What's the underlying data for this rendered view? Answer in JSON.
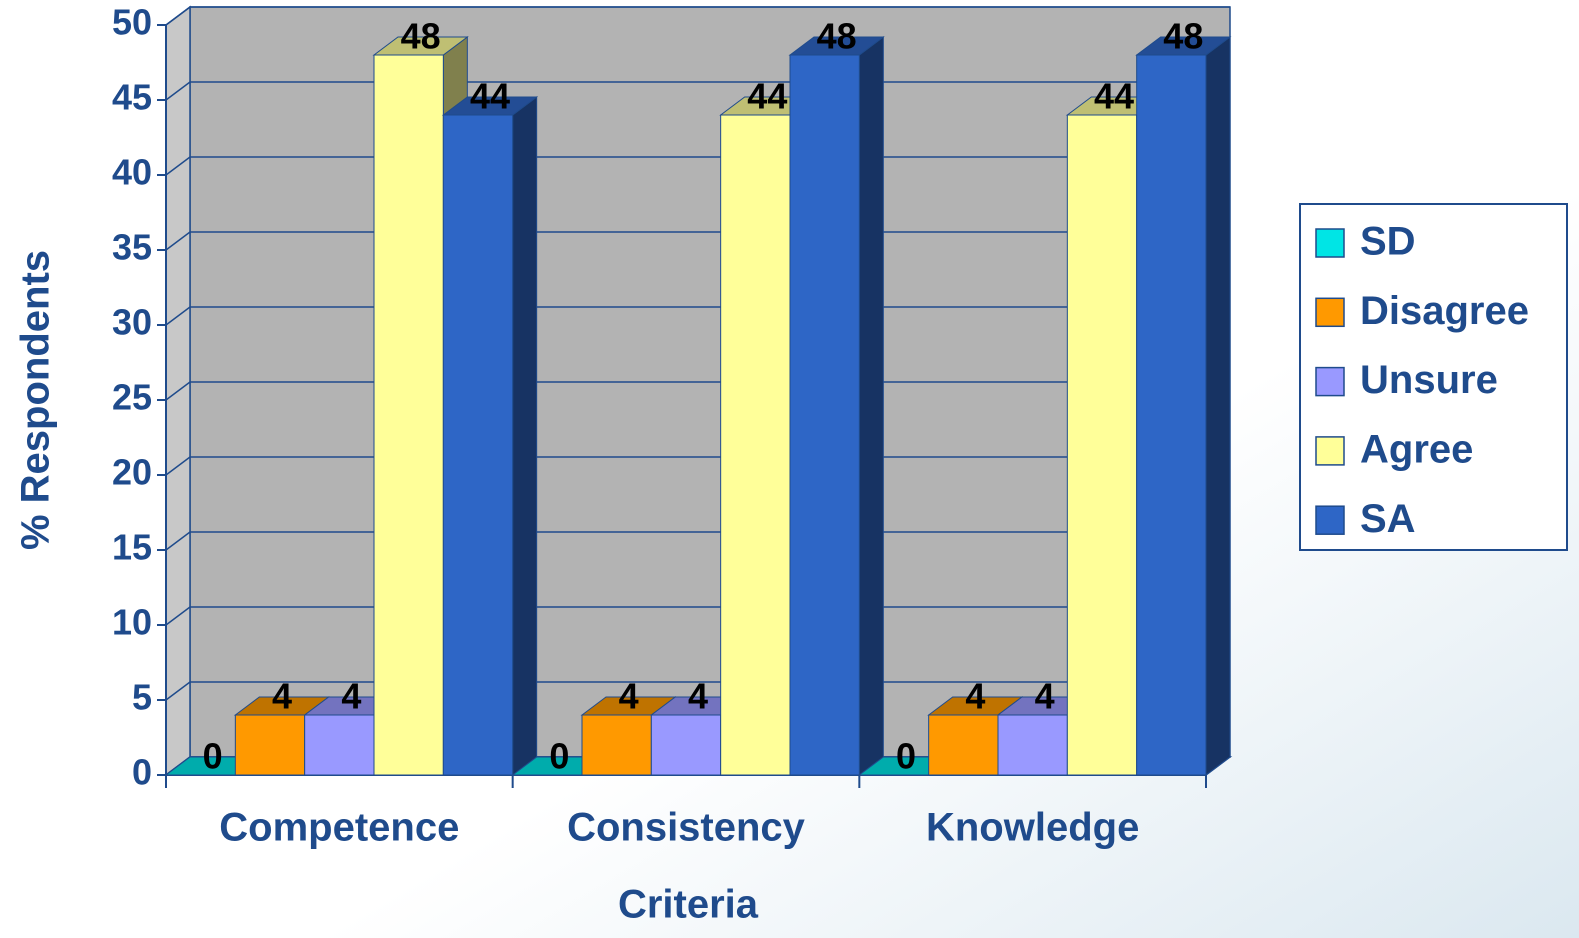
{
  "chart_data": {
    "type": "bar3d",
    "x_label": "Criteria",
    "y_label": "% Respondents",
    "categories": [
      "Competence",
      "Consistency",
      "Knowledge"
    ],
    "series": [
      {
        "name": "SD",
        "color": "#00e5e5",
        "values": [
          0,
          0,
          0
        ]
      },
      {
        "name": "Disagree",
        "color": "#ff9900",
        "values": [
          4,
          4,
          4
        ]
      },
      {
        "name": "Unsure",
        "color": "#9999ff",
        "values": [
          4,
          4,
          4
        ]
      },
      {
        "name": "Agree",
        "color": "#ffff99",
        "values": [
          48,
          44,
          44
        ]
      },
      {
        "name": "SA",
        "color": "#2e66c6",
        "values": [
          44,
          48,
          48
        ]
      }
    ],
    "ylim": [
      0,
      50
    ],
    "yticks": [
      0,
      5,
      10,
      15,
      20,
      25,
      30,
      35,
      40,
      45,
      50
    ],
    "grid": true,
    "legend": "right"
  }
}
